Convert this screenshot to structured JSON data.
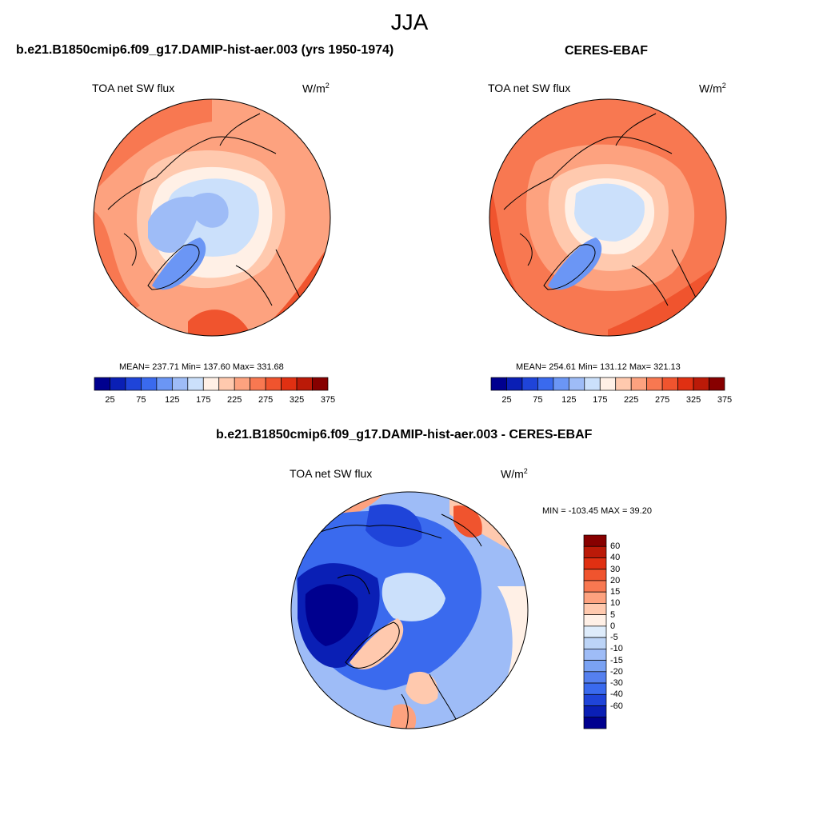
{
  "page": {
    "season": "JJA",
    "model_title": "b.e21.B1850cmip6.f09_g17.DAMIP-hist-aer.003 (yrs 1950-1974)",
    "obs_title": "CERES-EBAF",
    "diff_title": "b.e21.B1850cmip6.f09_g17.DAMIP-hist-aer.003 - CERES-EBAF"
  },
  "panels": {
    "model": {
      "variable": "TOA net SW flux",
      "units": "W/m",
      "units_exp": "2",
      "mean_text": "MEAN= 237.71  Min= 137.60  Max= 331.68"
    },
    "obs": {
      "variable": "TOA net SW flux",
      "units": "W/m",
      "units_exp": "2",
      "mean_text": "MEAN= 254.61  Min= 131.12  Max= 321.13"
    },
    "diff": {
      "variable": "TOA net SW flux",
      "units": "W/m",
      "units_exp": "2",
      "minmax_text": "MIN = -103.45 MAX =  39.20"
    }
  },
  "colorbars": {
    "abs_colors": [
      "#00008f",
      "#0a1fb5",
      "#1f44d9",
      "#3a6aee",
      "#6b96f5",
      "#9ebcf7",
      "#cbe0fb",
      "#fff0e6",
      "#ffc9ae",
      "#fda27f",
      "#f87851",
      "#f0542e",
      "#e03012",
      "#bb1a08",
      "#870000"
    ],
    "abs_ticks": [
      "25",
      "75",
      "125",
      "175",
      "225",
      "275",
      "325",
      "375"
    ],
    "diff_colors": [
      "#870000",
      "#bb1a08",
      "#e03012",
      "#f0542e",
      "#f87851",
      "#fda27f",
      "#ffc9ae",
      "#fff0e6",
      "#deecfb",
      "#bcd4f7",
      "#9ebcf7",
      "#7aa2f3",
      "#5580ef",
      "#3a6aee",
      "#1f44d9",
      "#0a1fb5",
      "#00008f"
    ],
    "diff_labels": [
      "60",
      "40",
      "30",
      "20",
      "15",
      "10",
      "5",
      "0",
      "-5",
      "-10",
      "-15",
      "-20",
      "-30",
      "-40",
      "-60"
    ]
  }
}
